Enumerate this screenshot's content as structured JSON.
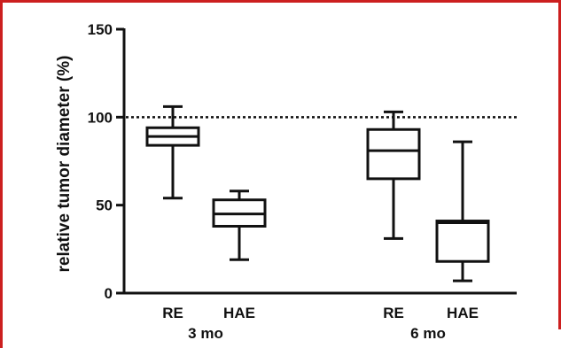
{
  "colors": {
    "frame": "#cc1f1f",
    "ink": "#111111",
    "background": "#ffffff"
  },
  "chart_data": {
    "type": "box",
    "ylabel": "relative tumor diameter (%)",
    "ylim": [
      0,
      150
    ],
    "yticks": [
      0,
      50,
      100,
      150
    ],
    "reference_line": {
      "y": 100,
      "style": "dotted"
    },
    "grid": false,
    "groups": [
      {
        "label": "3 mo",
        "boxes": [
          {
            "label": "RE",
            "min": 54,
            "q1": 84,
            "median": 89,
            "q3": 94,
            "max": 106
          },
          {
            "label": "HAE",
            "min": 19,
            "q1": 38,
            "median": 45,
            "q3": 53,
            "max": 58
          }
        ]
      },
      {
        "label": "6 mo",
        "boxes": [
          {
            "label": "RE",
            "min": 31,
            "q1": 65,
            "median": 81,
            "q3": 93,
            "max": 103
          },
          {
            "label": "HAE",
            "min": 7,
            "q1": 18,
            "median": 40,
            "q3": 41,
            "max": 86
          }
        ]
      }
    ]
  }
}
